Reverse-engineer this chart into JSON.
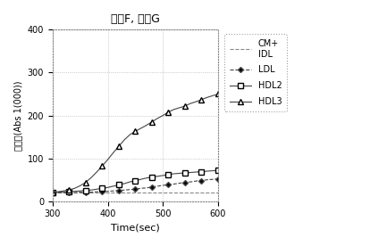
{
  "title": "試薬F, 試薬G",
  "xlabel": "Time(sec)",
  "ylabel": "吸光度(Abs 1(000))",
  "xlim": [
    300,
    600
  ],
  "ylim": [
    0,
    400
  ],
  "xticks": [
    300,
    400,
    500,
    600
  ],
  "yticks": [
    0,
    100,
    200,
    300,
    400
  ],
  "legend_labels": [
    "CM+\nIDL",
    "LDL",
    "HDL2",
    "HDL3"
  ],
  "series": {
    "CM_IDL": {
      "x": [
        300,
        310,
        320,
        330,
        340,
        350,
        360,
        370,
        380,
        390,
        400,
        410,
        420,
        430,
        440,
        450,
        460,
        470,
        480,
        490,
        500,
        510,
        520,
        530,
        540,
        550,
        560,
        570,
        580,
        590,
        600
      ],
      "y": [
        20,
        20,
        20,
        20,
        20,
        20,
        20,
        20,
        20,
        20,
        20,
        20,
        20,
        20,
        20,
        20,
        20,
        20,
        20,
        20,
        20,
        20,
        20,
        20,
        20,
        20,
        20,
        20,
        20,
        20,
        20
      ],
      "color": "#888888",
      "linestyle": "--",
      "marker": null,
      "markersize": 0
    },
    "LDL": {
      "x": [
        300,
        310,
        320,
        330,
        340,
        350,
        360,
        370,
        380,
        390,
        400,
        410,
        420,
        430,
        440,
        450,
        460,
        470,
        480,
        490,
        500,
        510,
        520,
        530,
        540,
        550,
        560,
        570,
        580,
        590,
        600
      ],
      "y": [
        20,
        20,
        20,
        20,
        20,
        21,
        21,
        21,
        22,
        22,
        23,
        24,
        25,
        26,
        27,
        28,
        30,
        31,
        33,
        35,
        37,
        38,
        40,
        42,
        44,
        45,
        47,
        48,
        50,
        51,
        52
      ],
      "color": "#444444",
      "linestyle": "--",
      "marker": "D",
      "markersize": 3
    },
    "HDL2": {
      "x": [
        300,
        310,
        320,
        330,
        340,
        350,
        360,
        370,
        380,
        390,
        400,
        410,
        420,
        430,
        440,
        450,
        460,
        470,
        480,
        490,
        500,
        510,
        520,
        530,
        540,
        550,
        560,
        570,
        580,
        590,
        600
      ],
      "y": [
        20,
        21,
        22,
        22,
        23,
        24,
        25,
        26,
        28,
        30,
        32,
        35,
        38,
        41,
        45,
        48,
        51,
        54,
        56,
        58,
        60,
        62,
        64,
        65,
        66,
        67,
        68,
        69,
        70,
        71,
        72
      ],
      "color": "#444444",
      "linestyle": "-",
      "marker": "s",
      "markersize": 4
    },
    "HDL3": {
      "x": [
        300,
        310,
        320,
        330,
        340,
        350,
        360,
        370,
        380,
        390,
        400,
        410,
        420,
        430,
        440,
        450,
        460,
        470,
        480,
        490,
        500,
        510,
        520,
        530,
        540,
        550,
        560,
        570,
        580,
        590,
        600
      ],
      "y": [
        20,
        22,
        24,
        26,
        30,
        36,
        44,
        55,
        68,
        82,
        97,
        113,
        128,
        143,
        155,
        163,
        170,
        177,
        185,
        193,
        200,
        208,
        214,
        218,
        222,
        228,
        232,
        237,
        242,
        246,
        250
      ],
      "color": "#444444",
      "linestyle": "-",
      "marker": "^",
      "markersize": 4
    }
  },
  "figsize": [
    4.33,
    2.76
  ],
  "dpi": 100,
  "background_color": "#ffffff",
  "grid_color": "#aaaaaa",
  "grid_linestyle": ":"
}
